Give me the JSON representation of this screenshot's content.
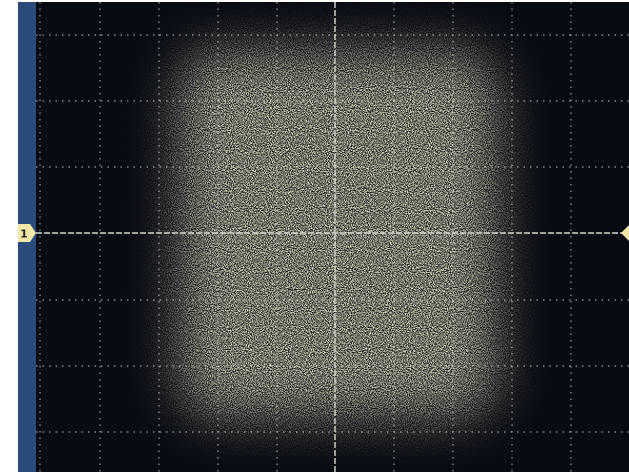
{
  "channel_marker": {
    "label": "1"
  }
}
